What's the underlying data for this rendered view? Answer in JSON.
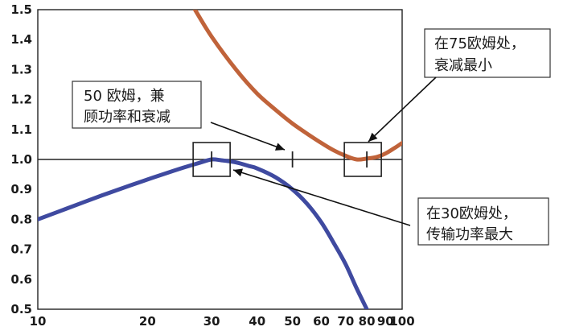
{
  "chart_data": {
    "type": "line",
    "x_scale": "log",
    "xlim": [
      10,
      100
    ],
    "ylim": [
      0.5,
      1.5
    ],
    "x_ticks": [
      10,
      20,
      30,
      40,
      50,
      60,
      70,
      80,
      90,
      100
    ],
    "x_tick_labels": [
      "10",
      "20",
      "30",
      "40",
      "50",
      "60",
      "70",
      "80",
      "90",
      "100"
    ],
    "y_ticks": [
      0.5,
      0.6,
      0.7,
      0.8,
      0.9,
      1.0,
      1.1,
      1.2,
      1.3,
      1.4,
      1.5
    ],
    "y_tick_labels": [
      "0.5",
      "0.6",
      "0.7",
      "0.8",
      "0.9",
      "1.0",
      "1.1",
      "1.2",
      "1.3",
      "1.4",
      "1.5"
    ],
    "reference_line_y": 1.0,
    "grid": false,
    "series": [
      {
        "color": "#c0633a",
        "x": [
          27,
          30,
          35,
          40,
          45,
          50,
          55,
          60,
          65,
          70,
          75,
          80,
          85,
          90,
          95,
          100
        ],
        "values": [
          1.5,
          1.41,
          1.3,
          1.22,
          1.165,
          1.12,
          1.085,
          1.055,
          1.03,
          1.012,
          1.0,
          1.003,
          1.008,
          1.02,
          1.037,
          1.055
        ]
      },
      {
        "color": "#3f4aa0",
        "x": [
          10,
          12,
          15,
          18,
          20,
          22,
          25,
          28,
          30,
          32,
          35,
          38,
          40,
          45,
          50,
          55,
          60,
          65,
          70,
          75,
          80
        ],
        "values": [
          0.8,
          0.836,
          0.88,
          0.914,
          0.933,
          0.95,
          0.972,
          0.99,
          1.0,
          0.997,
          0.99,
          0.978,
          0.97,
          0.94,
          0.9,
          0.85,
          0.79,
          0.72,
          0.65,
          0.57,
          0.5
        ]
      }
    ],
    "tick_marks_x": [
      30,
      50,
      80
    ],
    "highlight_boxes": [
      {
        "x": 30,
        "y": 1.0
      },
      {
        "x": 78,
        "y": 1.0
      }
    ],
    "annotations": {
      "attenuation": {
        "lines": [
          "在75欧姆处，",
          "衰减最小"
        ]
      },
      "compromise": {
        "lines": [
          "50 欧姆，兼",
          "顾功率和衰减"
        ]
      },
      "power": {
        "lines": [
          "在30欧姆处，",
          "传输功率最大"
        ]
      }
    }
  }
}
